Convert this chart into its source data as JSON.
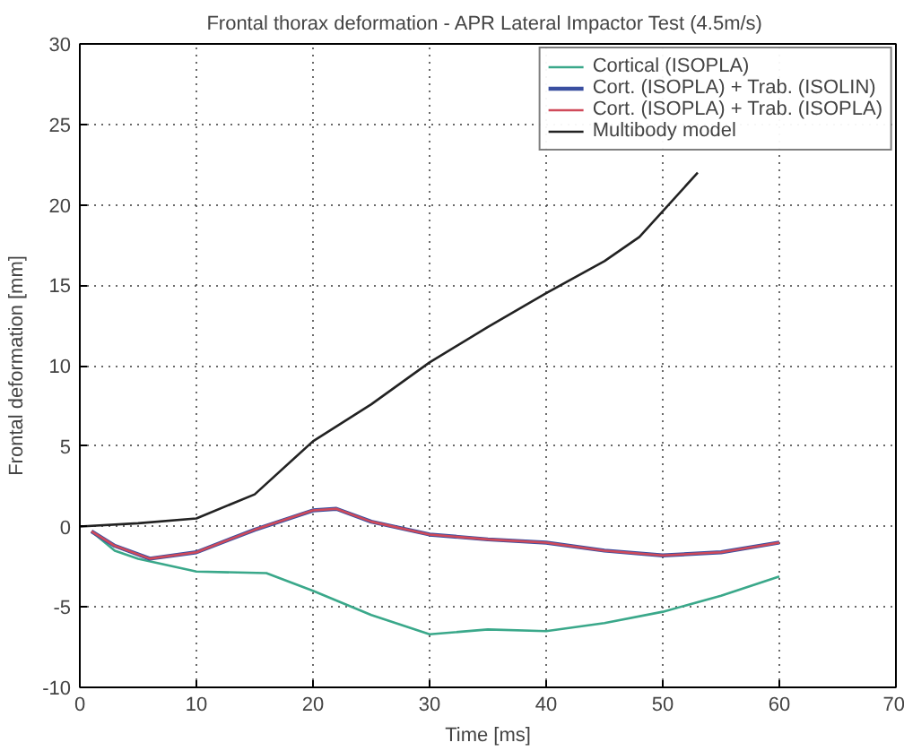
{
  "chart_data": {
    "type": "line",
    "title": "Frontal thorax deformation  - APR Lateral Impactor Test (4.5m/s)",
    "xlabel": "Time [ms]",
    "ylabel": "Frontal deformation [mm]",
    "xlim": [
      0,
      70
    ],
    "ylim": [
      -10,
      30
    ],
    "xticks": [
      0,
      10,
      20,
      30,
      40,
      50,
      60,
      70
    ],
    "yticks": [
      -10,
      -5,
      0,
      5,
      10,
      15,
      20,
      25,
      30
    ],
    "grid": true,
    "legend": "top right",
    "line_style": "solid",
    "series": [
      {
        "name": "Cortical (ISOPLA)",
        "color": "#3aa88a",
        "x": [
          1,
          3,
          5,
          10,
          16,
          20,
          25,
          30,
          35,
          40,
          45,
          50,
          55,
          60
        ],
        "values": [
          -0.3,
          -1.5,
          -2.0,
          -2.8,
          -2.9,
          -4.0,
          -5.5,
          -6.7,
          -6.4,
          -6.5,
          -6.0,
          -5.3,
          -4.3,
          -3.1
        ]
      },
      {
        "name": "Cort. (ISOPLA) + Trab. (ISOLIN)",
        "color": "#3a4fa0",
        "x": [
          1,
          3,
          6,
          10,
          15,
          20,
          22,
          25,
          30,
          35,
          40,
          45,
          50,
          55,
          60
        ],
        "values": [
          -0.3,
          -1.2,
          -2.0,
          -1.6,
          -0.2,
          1.0,
          1.1,
          0.3,
          -0.5,
          -0.8,
          -1.0,
          -1.5,
          -1.8,
          -1.6,
          -1.0
        ]
      },
      {
        "name": "Cort. (ISOPLA) + Trab. (ISOPLA)",
        "color": "#d04a5a",
        "x": [
          1,
          3,
          6,
          10,
          15,
          20,
          22,
          25,
          30,
          35,
          40,
          45,
          50,
          55,
          60
        ],
        "values": [
          -0.3,
          -1.2,
          -2.0,
          -1.6,
          -0.2,
          1.0,
          1.1,
          0.3,
          -0.5,
          -0.8,
          -1.0,
          -1.5,
          -1.8,
          -1.6,
          -1.0
        ]
      },
      {
        "name": "Multibody model",
        "color": "#222222",
        "x": [
          0,
          5,
          10,
          15,
          20,
          25,
          30,
          35,
          40,
          45,
          48,
          53
        ],
        "values": [
          0,
          0.2,
          0.5,
          2,
          5.3,
          7.6,
          10.2,
          12.4,
          14.5,
          16.5,
          18,
          22
        ]
      }
    ]
  }
}
